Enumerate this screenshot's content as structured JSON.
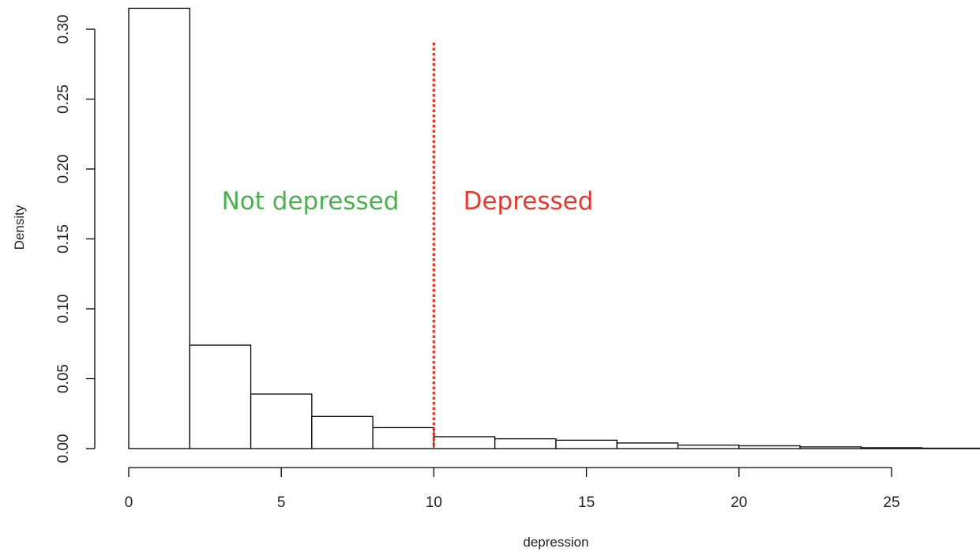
{
  "chart_data": {
    "type": "bar",
    "subtype": "histogram",
    "xlabel": "depression",
    "ylabel": "Density",
    "xlim": [
      0,
      28
    ],
    "ylim": [
      0,
      0.3
    ],
    "x_ticks": [
      0,
      5,
      10,
      15,
      20,
      25
    ],
    "x_tick_labels": [
      "0",
      "5",
      "10",
      "15",
      "20",
      "25"
    ],
    "y_ticks": [
      0,
      0.05,
      0.1,
      0.15,
      0.2,
      0.25,
      0.3
    ],
    "y_tick_labels": [
      "0.00",
      "0.05",
      "0.10",
      "0.15",
      "0.20",
      "0.25",
      "0.30"
    ],
    "bins": [
      {
        "start": 0,
        "end": 2,
        "density": 0.315
      },
      {
        "start": 2,
        "end": 4,
        "density": 0.074
      },
      {
        "start": 4,
        "end": 6,
        "density": 0.039
      },
      {
        "start": 6,
        "end": 8,
        "density": 0.023
      },
      {
        "start": 8,
        "end": 10,
        "density": 0.015
      },
      {
        "start": 10,
        "end": 12,
        "density": 0.0085
      },
      {
        "start": 12,
        "end": 14,
        "density": 0.007
      },
      {
        "start": 14,
        "end": 16,
        "density": 0.006
      },
      {
        "start": 16,
        "end": 18,
        "density": 0.004
      },
      {
        "start": 18,
        "end": 20,
        "density": 0.0025
      },
      {
        "start": 20,
        "end": 22,
        "density": 0.002
      },
      {
        "start": 22,
        "end": 24,
        "density": 0.0012
      },
      {
        "start": 24,
        "end": 26,
        "density": 0.0006
      },
      {
        "start": 26,
        "end": 28,
        "density": 0.0003
      }
    ],
    "threshold": {
      "x": 10,
      "color": "#e23b2e",
      "style": "dotted"
    },
    "annotations": [
      {
        "text": "Not depressed",
        "color": "#4caf50",
        "side": "left"
      },
      {
        "text": "Depressed",
        "color": "#e23b2e",
        "side": "right"
      }
    ],
    "grid": false,
    "legend": "none"
  }
}
